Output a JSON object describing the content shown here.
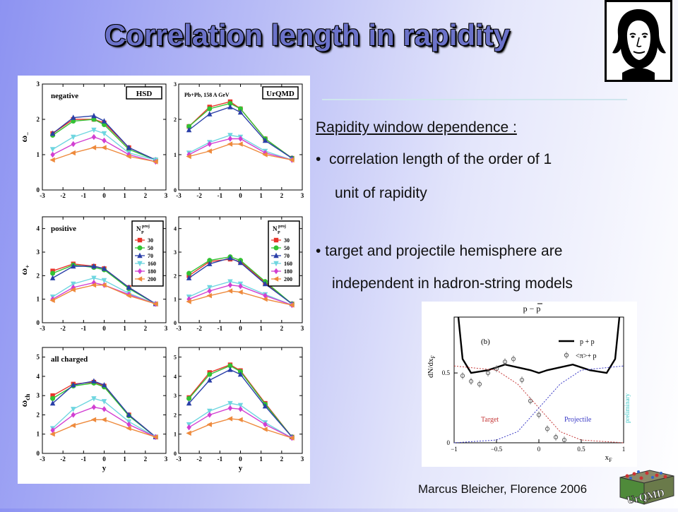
{
  "slide": {
    "title": "Correlation length in rapidity",
    "heading": "Rapidity window dependence :",
    "bullet1": "correlation length of the order of 1",
    "bullet1_cont": "unit of rapidity",
    "bullet2": "target and projectile hemisphere are",
    "bullet2_cont": "independent in hadron-string models",
    "footer": "Marcus Bleicher, Florence 2006",
    "logo_text": "UrQMD"
  },
  "main_figure": {
    "model_labels": [
      "HSD",
      "UrQMD"
    ],
    "system_label": "Pb+Pb,  158 A GeV",
    "x_ticks": [
      "-3",
      "-2",
      "-1",
      "0",
      "1",
      "2",
      "3"
    ],
    "x_label": "y",
    "legend_title": "N",
    "legend_title_sup": "proj",
    "legend_title_sub": "P",
    "legend_entries": [
      "30",
      "50",
      "70",
      "160",
      "180",
      "200"
    ],
    "rows": [
      {
        "label": "negative",
        "y_label": "ω",
        "y_sub": "−",
        "y_ticks": [
          "0",
          "1",
          "2",
          "3"
        ]
      },
      {
        "label": "positive",
        "y_label": "ω",
        "y_sub": "+",
        "y_ticks": [
          "0",
          "1",
          "2",
          "3",
          "4"
        ]
      },
      {
        "label": "all charged",
        "y_label": "ω",
        "y_sub": "ch",
        "y_ticks": [
          "0",
          "1",
          "2",
          "3",
          "4",
          "5"
        ]
      }
    ]
  },
  "inset_figure": {
    "title": "p − p",
    "panel_label": "(b)",
    "y_label": "dN/dx",
    "y_sub": "F",
    "x_label": "x",
    "x_sub": "F",
    "legend_line": "p + p",
    "legend_points": "<π>+ p",
    "target_label": "Target",
    "projectile_label": "Projectile",
    "prelim_label": "preliminary",
    "x_ticks": [
      "−1",
      "−0.5",
      "0",
      "0.5",
      "1"
    ],
    "y_ticks": [
      "0",
      "0.5"
    ]
  },
  "chart_data": [
    {
      "type": "scatter",
      "title": "negative — HSD",
      "xlabel": "y",
      "ylabel": "ω−",
      "xlim": [
        -3,
        3
      ],
      "ylim": [
        0,
        3
      ],
      "x": [
        -2.5,
        -1.5,
        -0.5,
        0,
        1.2,
        2.5
      ],
      "series": [
        {
          "name": "30",
          "values": [
            1.6,
            2.0,
            2.0,
            1.9,
            1.2,
            0.85
          ]
        },
        {
          "name": "50",
          "values": [
            1.55,
            1.95,
            2.0,
            1.85,
            1.15,
            0.85
          ]
        },
        {
          "name": "70",
          "values": [
            1.6,
            2.05,
            2.1,
            1.95,
            1.2,
            0.85
          ]
        },
        {
          "name": "160",
          "values": [
            1.15,
            1.5,
            1.7,
            1.6,
            1.05,
            0.85
          ]
        },
        {
          "name": "180",
          "values": [
            1.0,
            1.3,
            1.5,
            1.4,
            1.0,
            0.8
          ]
        },
        {
          "name": "200",
          "values": [
            0.85,
            1.05,
            1.2,
            1.2,
            0.95,
            0.8
          ]
        }
      ]
    },
    {
      "type": "scatter",
      "title": "negative — UrQMD",
      "xlabel": "y",
      "ylabel": "ω−",
      "xlim": [
        -3,
        3
      ],
      "ylim": [
        0,
        3
      ],
      "x": [
        -2.5,
        -1.5,
        -0.5,
        0,
        1.2,
        2.5
      ],
      "series": [
        {
          "name": "30",
          "values": [
            1.8,
            2.35,
            2.5,
            2.3,
            1.45,
            0.9
          ]
        },
        {
          "name": "50",
          "values": [
            1.8,
            2.3,
            2.45,
            2.3,
            1.45,
            0.9
          ]
        },
        {
          "name": "70",
          "values": [
            1.7,
            2.15,
            2.35,
            2.2,
            1.4,
            0.9
          ]
        },
        {
          "name": "160",
          "values": [
            1.05,
            1.35,
            1.55,
            1.5,
            1.1,
            0.85
          ]
        },
        {
          "name": "180",
          "values": [
            1.0,
            1.3,
            1.45,
            1.45,
            1.05,
            0.85
          ]
        },
        {
          "name": "200",
          "values": [
            0.95,
            1.1,
            1.3,
            1.3,
            1.0,
            0.85
          ]
        }
      ]
    },
    {
      "type": "scatter",
      "title": "positive — HSD",
      "xlabel": "y",
      "ylabel": "ω+",
      "xlim": [
        -3,
        3
      ],
      "ylim": [
        0,
        4.5
      ],
      "x": [
        -2.5,
        -1.5,
        -0.5,
        0,
        1.2,
        2.5
      ],
      "series": [
        {
          "name": "30",
          "values": [
            2.2,
            2.5,
            2.4,
            2.3,
            1.5,
            0.8
          ]
        },
        {
          "name": "50",
          "values": [
            2.1,
            2.45,
            2.35,
            2.25,
            1.45,
            0.8
          ]
        },
        {
          "name": "70",
          "values": [
            1.9,
            2.4,
            2.4,
            2.3,
            1.5,
            0.8
          ]
        },
        {
          "name": "160",
          "values": [
            1.1,
            1.65,
            1.9,
            1.8,
            1.25,
            0.8
          ]
        },
        {
          "name": "180",
          "values": [
            1.0,
            1.5,
            1.7,
            1.6,
            1.2,
            0.8
          ]
        },
        {
          "name": "200",
          "values": [
            0.95,
            1.4,
            1.6,
            1.6,
            1.15,
            0.8
          ]
        }
      ]
    },
    {
      "type": "scatter",
      "title": "positive — UrQMD",
      "xlabel": "y",
      "ylabel": "ω+",
      "xlim": [
        -3,
        3
      ],
      "ylim": [
        0,
        4.5
      ],
      "x": [
        -2.5,
        -1.5,
        -0.5,
        0,
        1.2,
        2.5
      ],
      "series": [
        {
          "name": "30",
          "values": [
            2.0,
            2.6,
            2.7,
            2.6,
            1.7,
            0.8
          ]
        },
        {
          "name": "50",
          "values": [
            2.1,
            2.65,
            2.8,
            2.65,
            1.75,
            0.8
          ]
        },
        {
          "name": "70",
          "values": [
            1.9,
            2.5,
            2.75,
            2.55,
            1.65,
            0.8
          ]
        },
        {
          "name": "160",
          "values": [
            1.1,
            1.5,
            1.75,
            1.65,
            1.2,
            0.75
          ]
        },
        {
          "name": "180",
          "values": [
            1.0,
            1.35,
            1.6,
            1.55,
            1.15,
            0.75
          ]
        },
        {
          "name": "200",
          "values": [
            0.9,
            1.15,
            1.35,
            1.3,
            1.0,
            0.75
          ]
        }
      ]
    },
    {
      "type": "scatter",
      "title": "all charged — HSD",
      "xlabel": "y",
      "ylabel": "ωch",
      "xlim": [
        -3,
        3
      ],
      "ylim": [
        0,
        5.5
      ],
      "x": [
        -2.5,
        -1.5,
        -0.5,
        0,
        1.2,
        2.5
      ],
      "series": [
        {
          "name": "30",
          "values": [
            3.0,
            3.6,
            3.7,
            3.5,
            2.0,
            0.85
          ]
        },
        {
          "name": "50",
          "values": [
            2.85,
            3.5,
            3.65,
            3.45,
            1.95,
            0.85
          ]
        },
        {
          "name": "70",
          "values": [
            2.6,
            3.55,
            3.75,
            3.55,
            2.0,
            0.85
          ]
        },
        {
          "name": "160",
          "values": [
            1.3,
            2.3,
            2.85,
            2.7,
            1.65,
            0.85
          ]
        },
        {
          "name": "180",
          "values": [
            1.2,
            2.0,
            2.4,
            2.3,
            1.5,
            0.85
          ]
        },
        {
          "name": "200",
          "values": [
            1.0,
            1.45,
            1.75,
            1.75,
            1.3,
            0.85
          ]
        }
      ]
    },
    {
      "type": "scatter",
      "title": "all charged — UrQMD",
      "xlabel": "y",
      "ylabel": "ωch",
      "xlim": [
        -3,
        3
      ],
      "ylim": [
        0,
        5.5
      ],
      "x": [
        -2.5,
        -1.5,
        -0.5,
        0,
        1.2,
        2.5
      ],
      "series": [
        {
          "name": "30",
          "values": [
            2.9,
            4.2,
            4.6,
            4.3,
            2.6,
            0.85
          ]
        },
        {
          "name": "50",
          "values": [
            2.85,
            4.1,
            4.55,
            4.25,
            2.55,
            0.85
          ]
        },
        {
          "name": "70",
          "values": [
            2.6,
            3.8,
            4.35,
            4.1,
            2.45,
            0.85
          ]
        },
        {
          "name": "160",
          "values": [
            1.5,
            2.2,
            2.6,
            2.5,
            1.6,
            0.8
          ]
        },
        {
          "name": "180",
          "values": [
            1.35,
            2.0,
            2.35,
            2.3,
            1.5,
            0.8
          ]
        },
        {
          "name": "200",
          "values": [
            1.05,
            1.5,
            1.8,
            1.75,
            1.25,
            0.8
          ]
        }
      ]
    },
    {
      "type": "line",
      "title": "p − p",
      "xlabel": "xF",
      "ylabel": "dN/dxF",
      "xlim": [
        -1,
        1
      ],
      "ylim": [
        0,
        0.9
      ],
      "series": [
        {
          "name": "p + p",
          "x": [
            -0.95,
            -0.9,
            -0.8,
            -0.6,
            -0.4,
            -0.25,
            -0.1,
            0.0,
            0.1,
            0.25,
            0.4,
            0.6,
            0.8,
            0.9,
            0.95
          ],
          "values": [
            0.9,
            0.6,
            0.5,
            0.52,
            0.56,
            0.54,
            0.52,
            0.5,
            0.52,
            0.54,
            0.56,
            0.52,
            0.5,
            0.6,
            0.9
          ]
        },
        {
          "name": "<π>+ p",
          "x": [
            -0.9,
            -0.8,
            -0.7,
            -0.6,
            -0.5,
            -0.4,
            -0.3,
            -0.2,
            -0.1,
            0.0,
            0.1,
            0.2,
            0.3
          ],
          "values": [
            0.48,
            0.44,
            0.42,
            0.5,
            0.53,
            0.58,
            0.6,
            0.45,
            0.3,
            0.2,
            0.1,
            0.04,
            0.02
          ]
        },
        {
          "name": "Target",
          "x": [
            -1,
            -0.5,
            -0.25,
            0,
            0.25,
            0.5,
            1
          ],
          "values": [
            0.55,
            0.52,
            0.42,
            0.25,
            0.08,
            0.02,
            0.0
          ]
        },
        {
          "name": "Projectile",
          "x": [
            -1,
            -0.5,
            -0.25,
            0,
            0.25,
            0.5,
            1
          ],
          "values": [
            0.0,
            0.02,
            0.08,
            0.25,
            0.42,
            0.52,
            0.55
          ]
        }
      ]
    }
  ]
}
